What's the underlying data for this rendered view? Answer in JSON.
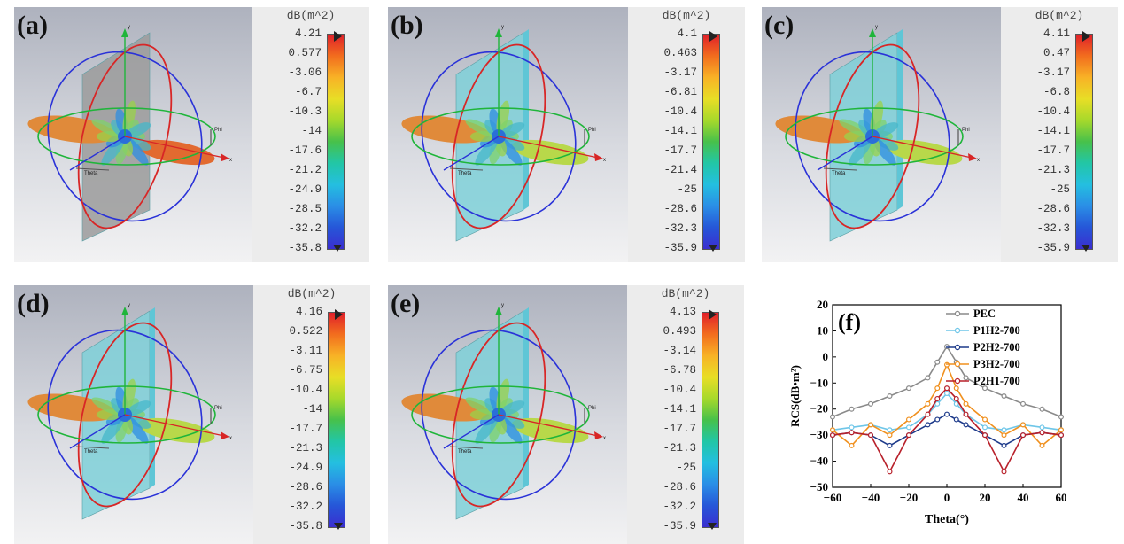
{
  "panels": [
    {
      "label": "(a)",
      "plate": "gray",
      "cbar": {
        "title": "dB(m^2)",
        "ticks": [
          "4.21",
          "0.577",
          "-3.06",
          "-6.7",
          "-10.3",
          "-14",
          "-17.6",
          "-21.2",
          "-24.9",
          "-28.5",
          "-32.2",
          "-35.8"
        ]
      }
    },
    {
      "label": "(b)",
      "plate": "cyan",
      "cbar": {
        "title": "dB(m^2)",
        "ticks": [
          "4.1",
          "0.463",
          "-3.17",
          "-6.81",
          "-10.4",
          "-14.1",
          "-17.7",
          "-21.4",
          "-25",
          "-28.6",
          "-32.3",
          "-35.9"
        ]
      }
    },
    {
      "label": "(c)",
      "plate": "cyan",
      "cbar": {
        "title": "dB(m^2)",
        "ticks": [
          "4.11",
          "0.47",
          "-3.17",
          "-6.8",
          "-10.4",
          "-14.1",
          "-17.7",
          "-21.3",
          "-25",
          "-28.6",
          "-32.3",
          "-35.9"
        ]
      }
    },
    {
      "label": "(d)",
      "plate": "cyan",
      "cbar": {
        "title": "dB(m^2)",
        "ticks": [
          "4.16",
          "0.522",
          "-3.11",
          "-6.75",
          "-10.4",
          "-14",
          "-17.7",
          "-21.3",
          "-24.9",
          "-28.6",
          "-32.2",
          "-35.8"
        ]
      }
    },
    {
      "label": "(e)",
      "plate": "cyan",
      "cbar": {
        "title": "dB(m^2)",
        "ticks": [
          "4.13",
          "0.493",
          "-3.14",
          "-6.78",
          "-10.4",
          "-14.1",
          "-17.7",
          "-21.3",
          "-25",
          "-28.6",
          "-32.2",
          "-35.9"
        ]
      }
    }
  ],
  "axis_labels": {
    "y": "y",
    "x": "x",
    "phi": "Phi",
    "theta": "Theta"
  },
  "chart_data": {
    "type": "line",
    "panel_label": "(f)",
    "xlabel": "Theta(°)",
    "ylabel": "RCS(dB•m²)",
    "xlim": [
      -60,
      60
    ],
    "ylim": [
      -50,
      20
    ],
    "xticks": [
      -60,
      -40,
      -20,
      0,
      20,
      40,
      60
    ],
    "yticks": [
      20,
      10,
      0,
      -10,
      -20,
      -30,
      -40,
      -50
    ],
    "legend_position": "top-right",
    "series": [
      {
        "name": "PEC",
        "color": "#8a8a8a",
        "x": [
          -60,
          -50,
          -40,
          -30,
          -20,
          -10,
          -5,
          0,
          5,
          10,
          20,
          30,
          40,
          50,
          60
        ],
        "y": [
          -23,
          -20,
          -18,
          -15,
          -12,
          -8,
          -2,
          4,
          -2,
          -8,
          -12,
          -15,
          -18,
          -20,
          -23
        ]
      },
      {
        "name": "P1H2-700",
        "color": "#6ec6e8",
        "x": [
          -60,
          -50,
          -40,
          -30,
          -20,
          -10,
          -5,
          0,
          5,
          10,
          20,
          30,
          40,
          50,
          60
        ],
        "y": [
          -28,
          -27,
          -26,
          -28,
          -27,
          -22,
          -18,
          -14,
          -18,
          -22,
          -27,
          -28,
          -26,
          -27,
          -28
        ]
      },
      {
        "name": "P2H2-700",
        "color": "#1d3a8a",
        "x": [
          -60,
          -50,
          -40,
          -30,
          -20,
          -10,
          -5,
          0,
          5,
          10,
          20,
          30,
          40,
          50,
          60
        ],
        "y": [
          -30,
          -29,
          -30,
          -34,
          -30,
          -26,
          -24,
          -22,
          -24,
          -26,
          -30,
          -34,
          -30,
          -29,
          -30
        ]
      },
      {
        "name": "P3H2-700",
        "color": "#f0901e",
        "x": [
          -60,
          -50,
          -40,
          -30,
          -20,
          -10,
          -5,
          0,
          5,
          10,
          20,
          30,
          40,
          50,
          60
        ],
        "y": [
          -28,
          -34,
          -26,
          -30,
          -24,
          -18,
          -12,
          -3,
          -12,
          -18,
          -24,
          -30,
          -26,
          -34,
          -28
        ]
      },
      {
        "name": "P2H1-700",
        "color": "#b8202a",
        "x": [
          -60,
          -50,
          -40,
          -30,
          -20,
          -10,
          -5,
          0,
          5,
          10,
          20,
          30,
          40,
          50,
          60
        ],
        "y": [
          -30,
          -29,
          -30,
          -44,
          -30,
          -22,
          -16,
          -12,
          -16,
          -22,
          -30,
          -44,
          -30,
          -29,
          -30
        ]
      }
    ]
  }
}
